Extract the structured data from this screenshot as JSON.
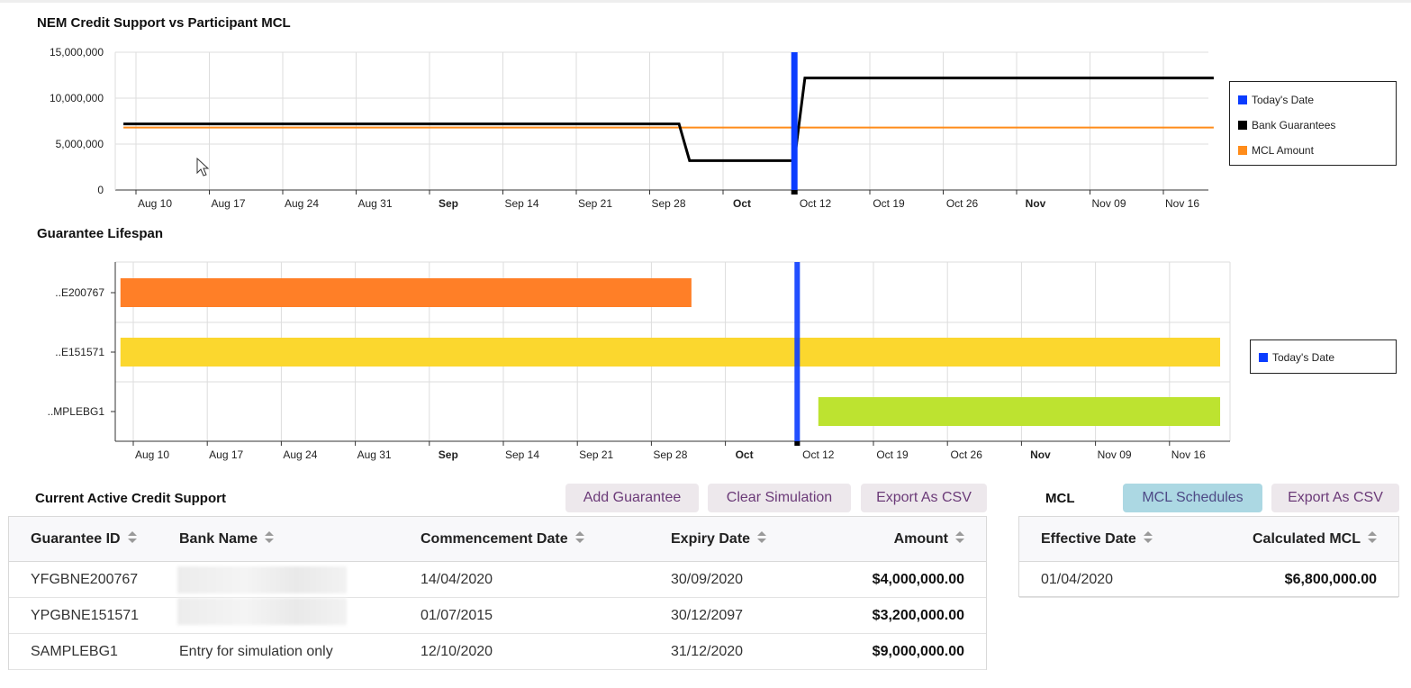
{
  "credit_chart": {
    "title": "NEM Credit Support vs Participant MCL",
    "y_ticks": [
      "15,000,000",
      "10,000,000",
      "5,000,000",
      "0"
    ],
    "x_ticks": [
      {
        "label": "Aug 10",
        "bold": false
      },
      {
        "label": "Aug 17",
        "bold": false
      },
      {
        "label": "Aug 24",
        "bold": false
      },
      {
        "label": "Aug 31",
        "bold": false
      },
      {
        "label": "Sep",
        "bold": true
      },
      {
        "label": "Sep 14",
        "bold": false
      },
      {
        "label": "Sep 21",
        "bold": false
      },
      {
        "label": "Sep 28",
        "bold": false
      },
      {
        "label": "Oct",
        "bold": true
      },
      {
        "label": "Oct 12",
        "bold": false
      },
      {
        "label": "Oct 19",
        "bold": false
      },
      {
        "label": "Oct 26",
        "bold": false
      },
      {
        "label": "Nov",
        "bold": true
      },
      {
        "label": "Nov 09",
        "bold": false
      },
      {
        "label": "Nov 16",
        "bold": false
      }
    ],
    "legend": [
      {
        "label": "Today's Date",
        "color": "#0a3cff"
      },
      {
        "label": "Bank Guarantees",
        "color": "#000000"
      },
      {
        "label": "MCL Amount",
        "color": "#ff8c1a"
      }
    ]
  },
  "lifespan_chart": {
    "title": "Guarantee Lifespan",
    "rows": [
      {
        "label": "..E200767",
        "color": "#ff7f27"
      },
      {
        "label": "..E151571",
        "color": "#fbd72e"
      },
      {
        "label": "..MPLEBG1",
        "color": "#bde330"
      }
    ],
    "x_ticks": [
      {
        "label": "Aug 10",
        "bold": false
      },
      {
        "label": "Aug 17",
        "bold": false
      },
      {
        "label": "Aug 24",
        "bold": false
      },
      {
        "label": "Aug 31",
        "bold": false
      },
      {
        "label": "Sep",
        "bold": true
      },
      {
        "label": "Sep 14",
        "bold": false
      },
      {
        "label": "Sep 21",
        "bold": false
      },
      {
        "label": "Sep 28",
        "bold": false
      },
      {
        "label": "Oct",
        "bold": true
      },
      {
        "label": "Oct 12",
        "bold": false
      },
      {
        "label": "Oct 19",
        "bold": false
      },
      {
        "label": "Oct 26",
        "bold": false
      },
      {
        "label": "Nov",
        "bold": true
      },
      {
        "label": "Nov 09",
        "bold": false
      },
      {
        "label": "Nov 16",
        "bold": false
      }
    ],
    "legend": [
      {
        "label": "Today's Date",
        "color": "#0a3cff"
      }
    ]
  },
  "chart_data": [
    {
      "type": "line",
      "title": "NEM Credit Support vs Participant MCL",
      "x_unit": "date",
      "ylim": [
        0,
        15000000
      ],
      "grid": true,
      "legend_position": "right",
      "today": "2020-10-10",
      "series": [
        {
          "name": "Bank Guarantees",
          "color": "#000000",
          "step": true,
          "points": [
            [
              "2020-08-07",
              7200000
            ],
            [
              "2020-09-29",
              7200000
            ],
            [
              "2020-09-30",
              3200000
            ],
            [
              "2020-10-10",
              3200000
            ],
            [
              "2020-10-11",
              12200000
            ],
            [
              "2020-11-19",
              12200000
            ]
          ]
        },
        {
          "name": "MCL Amount",
          "color": "#ff8c1a",
          "step": true,
          "points": [
            [
              "2020-08-07",
              6800000
            ],
            [
              "2020-11-19",
              6800000
            ]
          ]
        }
      ]
    },
    {
      "type": "bar",
      "orientation": "horizontal-range",
      "title": "Guarantee Lifespan",
      "grid": true,
      "legend_position": "right",
      "today": "2020-10-10",
      "bars": [
        {
          "label": "..E200767",
          "start": "2020-08-07",
          "end": "2020-09-30",
          "color": "#ff7f27"
        },
        {
          "label": "..E151571",
          "start": "2020-08-07",
          "end": "2020-11-19",
          "color": "#fbd72e"
        },
        {
          "label": "..MPLEBG1",
          "start": "2020-10-12",
          "end": "2020-11-19",
          "color": "#bde330"
        }
      ]
    }
  ],
  "credit_support": {
    "title": "Current Active Credit Support",
    "buttons": {
      "add": "Add Guarantee",
      "clear": "Clear Simulation",
      "export": "Export As CSV"
    },
    "columns": {
      "id": "Guarantee ID",
      "bank": "Bank Name",
      "commence": "Commencement Date",
      "expiry": "Expiry Date",
      "amount": "Amount"
    },
    "rows": [
      {
        "id": "YFGBNE200767",
        "bank": "",
        "commence": "14/04/2020",
        "expiry": "30/09/2020",
        "amount": "$4,000,000.00"
      },
      {
        "id": "YPGBNE151571",
        "bank": "",
        "commence": "01/07/2015",
        "expiry": "30/12/2097",
        "amount": "$3,200,000.00"
      },
      {
        "id": "SAMPLEBG1",
        "bank": "Entry for simulation only",
        "commence": "12/10/2020",
        "expiry": "31/12/2020",
        "amount": "$9,000,000.00"
      }
    ]
  },
  "mcl": {
    "title": "MCL",
    "buttons": {
      "schedules": "MCL Schedules",
      "export": "Export As CSV"
    },
    "columns": {
      "effective": "Effective Date",
      "calculated": "Calculated MCL"
    },
    "rows": [
      {
        "effective": "01/04/2020",
        "calculated": "$6,800,000.00"
      }
    ]
  }
}
